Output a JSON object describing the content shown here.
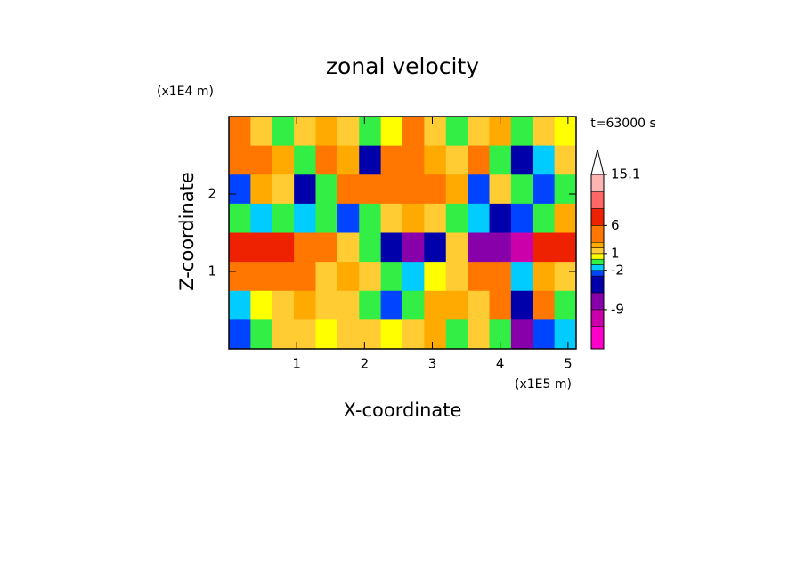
{
  "chart_data": {
    "type": "contour",
    "title": "zonal velocity",
    "x_label": "X-coordinate",
    "y_label": "Z-coordinate",
    "x_unit": "(x1E5 m)",
    "y_unit": "(x1E4 m)",
    "time_label": "t=63000 s",
    "xlim": [
      0,
      5.12
    ],
    "ylim": [
      0,
      3
    ],
    "xticks": [
      1,
      2,
      3,
      4,
      5
    ],
    "yticks": [
      1,
      2
    ],
    "field": [
      [
        3,
        1,
        -1,
        1,
        2,
        1,
        -1,
        0,
        3,
        1,
        -1,
        1,
        2,
        -1,
        1,
        0
      ],
      [
        4,
        5,
        2,
        -1,
        3,
        2,
        -4,
        3,
        4,
        2,
        1,
        3,
        -1,
        -4,
        -2,
        1
      ],
      [
        -3,
        2,
        1,
        -4,
        -1,
        3,
        4,
        5,
        3,
        4,
        2,
        -3,
        1,
        -1,
        -3,
        -1
      ],
      [
        -1,
        -2,
        -1,
        -2,
        -1,
        -3,
        -1,
        1,
        2,
        1,
        -1,
        -2,
        -6,
        -3,
        -1,
        2
      ],
      [
        7,
        8,
        6,
        3,
        4,
        1,
        -1,
        -6,
        -8,
        -4,
        1,
        -7,
        -8,
        -10,
        6,
        8
      ],
      [
        5,
        5,
        3,
        3,
        1,
        2,
        1,
        -1,
        -2,
        0,
        1,
        3,
        4,
        -2,
        2,
        1
      ],
      [
        -2,
        0,
        1,
        2,
        1,
        1,
        -1,
        -3,
        -1,
        2,
        2,
        1,
        3,
        -6,
        3,
        -1
      ],
      [
        -3,
        -1,
        1,
        1,
        0,
        1,
        1,
        0,
        1,
        2,
        -1,
        1,
        -1,
        -9,
        -3,
        -2
      ]
    ],
    "colorbar": {
      "lim": [
        -16,
        15.1
      ],
      "levels": [
        -16,
        -12,
        -9,
        -6,
        -3,
        -2,
        -1,
        0,
        1,
        2,
        3,
        6,
        9,
        12,
        15.1
      ],
      "colors": [
        "#ff00cc",
        "#cc00aa",
        "#8800aa",
        "#0000aa",
        "#0044ff",
        "#00ccff",
        "#33ee44",
        "#ffff00",
        "#ffcc33",
        "#ffaa00",
        "#ff7700",
        "#ee2200",
        "#ff6666",
        "#ffb4b4"
      ],
      "ticks": [
        15.1,
        6,
        1,
        -2,
        -9
      ]
    }
  }
}
